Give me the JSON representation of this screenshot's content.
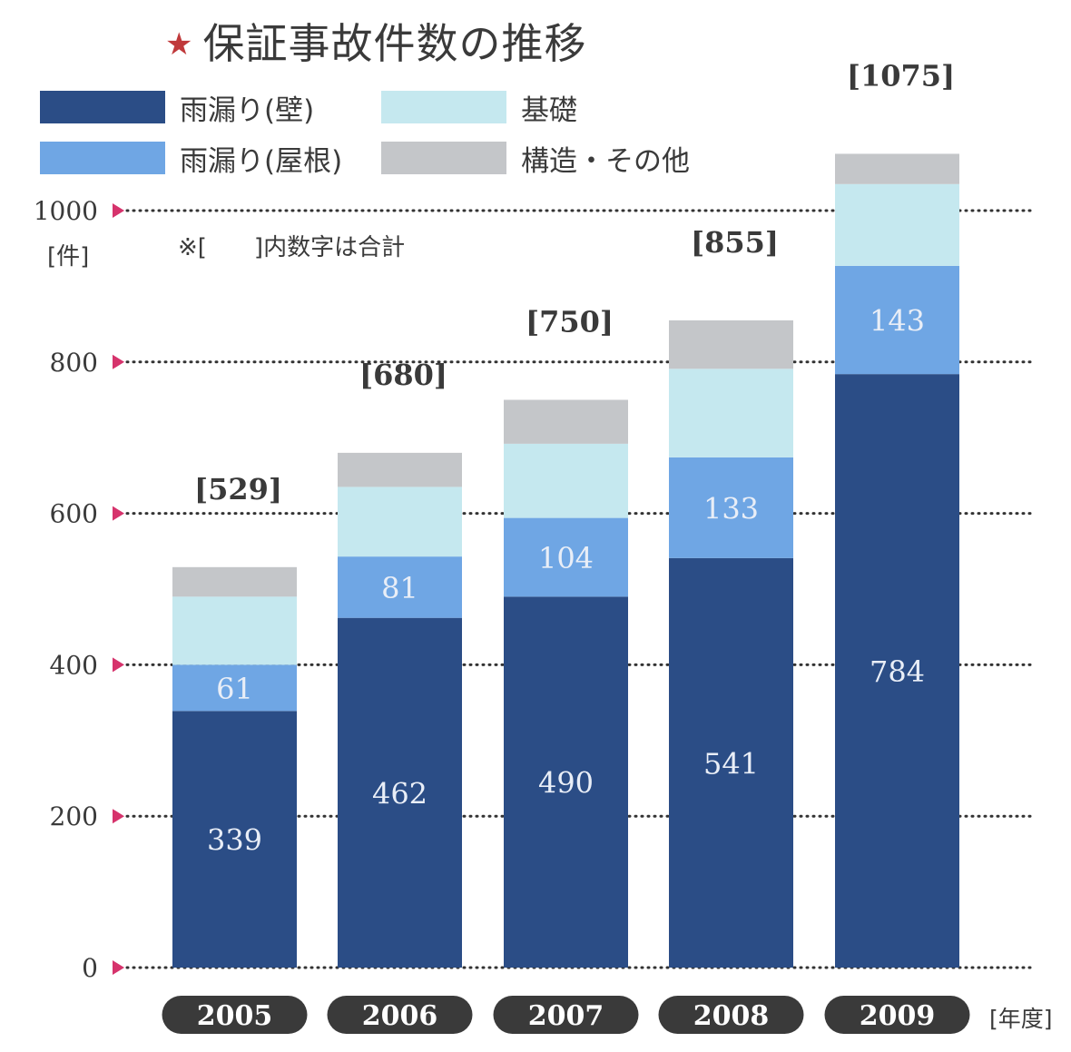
{
  "title": "保証事故件数の推移",
  "title_marker": "★",
  "legend": [
    {
      "label": "雨漏り(壁)",
      "color": "#2b4d86"
    },
    {
      "label": "基礎",
      "color": "#c5e8ef"
    },
    {
      "label": "雨漏り(屋根)",
      "color": "#6fa6e4"
    },
    {
      "label": "構造・その他",
      "color": "#c4c6c9"
    }
  ],
  "note": "※[　　]内数字は合計",
  "y_unit": "[件]",
  "x_unit": "[年度]",
  "chart_data": {
    "type": "bar",
    "stacked": true,
    "categories": [
      "2005",
      "2006",
      "2007",
      "2008",
      "2009"
    ],
    "series": [
      {
        "name": "雨漏り(壁)",
        "color": "#2b4d86",
        "values": [
          339,
          462,
          490,
          541,
          784
        ],
        "labels": [
          "339",
          "462",
          "490",
          "541",
          "784"
        ]
      },
      {
        "name": "雨漏り(屋根)",
        "color": "#6fa6e4",
        "values": [
          61,
          81,
          104,
          133,
          143
        ],
        "labels": [
          "61",
          "81",
          "104",
          "133",
          "143"
        ]
      },
      {
        "name": "基礎",
        "color": "#c5e8ef",
        "values": [
          90,
          92,
          98,
          117,
          108
        ],
        "labels": [
          "",
          "",
          "",
          "",
          ""
        ]
      },
      {
        "name": "構造・その他",
        "color": "#c4c6c9",
        "values": [
          39,
          45,
          58,
          64,
          40
        ],
        "labels": [
          "",
          "",
          "",
          "",
          ""
        ]
      }
    ],
    "totals": [
      "[529]",
      "[680]",
      "[750]",
      "[855]",
      "[1075]"
    ],
    "y_ticks": [
      "0",
      "200",
      "400",
      "600",
      "800",
      "1000"
    ],
    "ylim": [
      0,
      1000
    ],
    "grid": true,
    "marker_color": "#d6336c"
  }
}
